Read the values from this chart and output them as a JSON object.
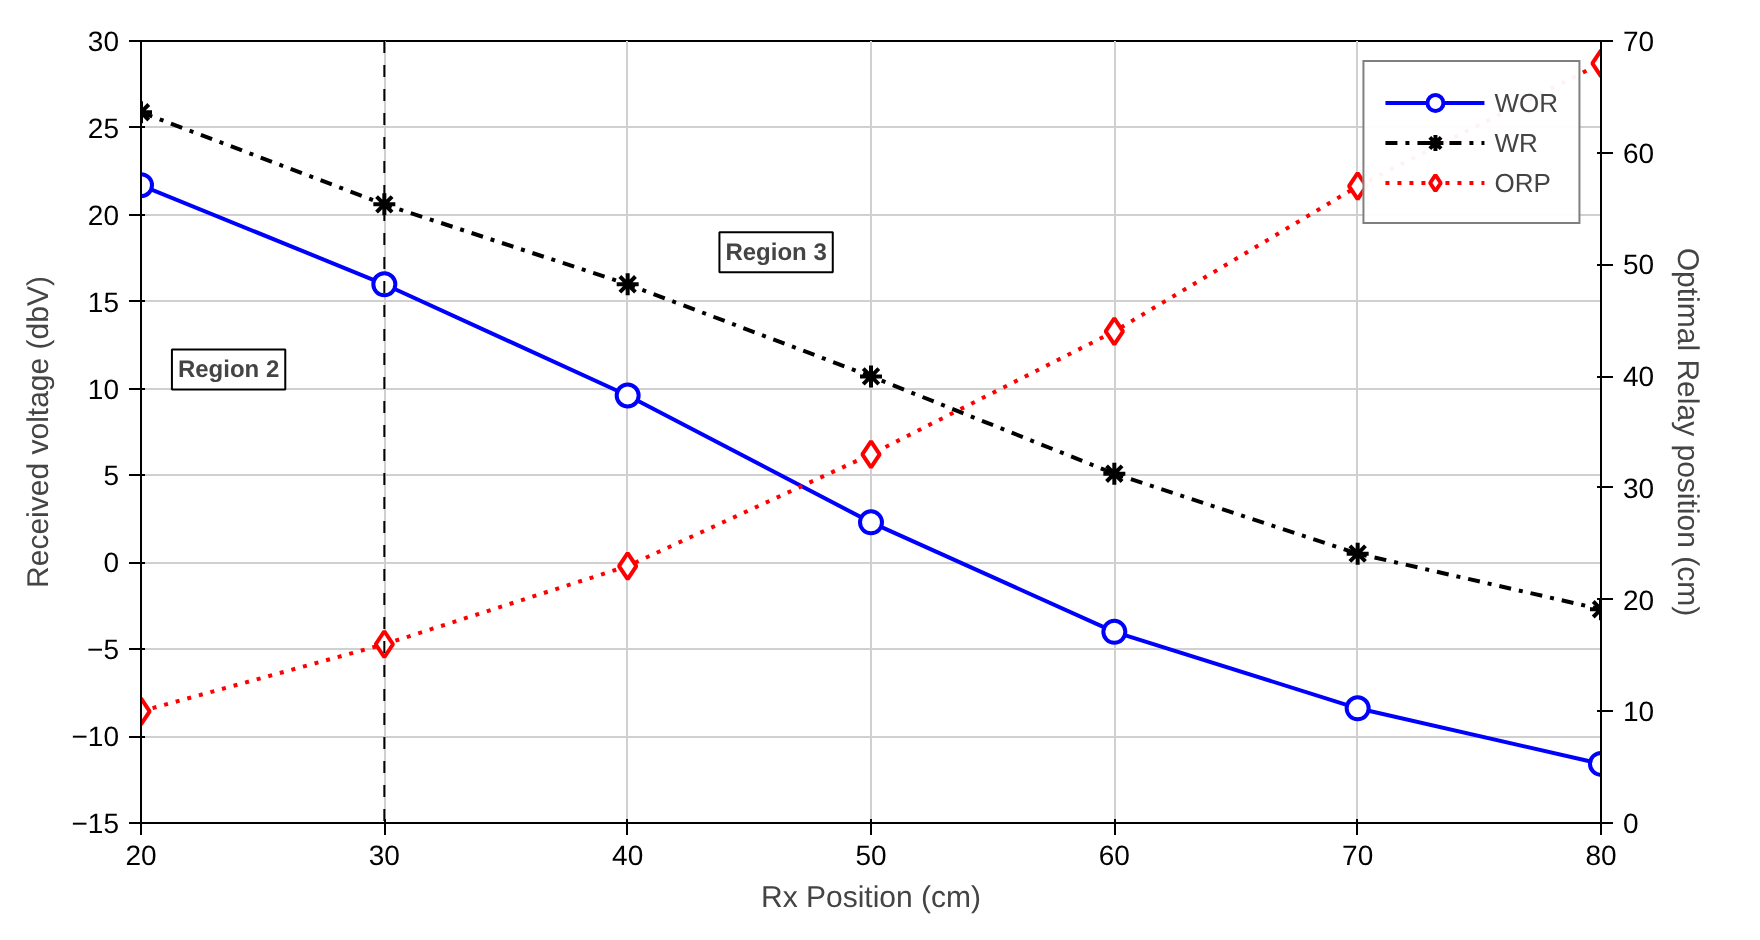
{
  "chart_data": {
    "type": "line",
    "xlabel": "Rx Position (cm)",
    "ylabel": "Received voltage (dbV)",
    "y2label": "Optimal Relay position (cm)",
    "x": [
      20,
      30,
      40,
      50,
      60,
      70,
      80
    ],
    "xlim": [
      20,
      80
    ],
    "xticks": [
      20,
      30,
      40,
      50,
      60,
      70,
      80
    ],
    "ylim": [
      -15,
      30
    ],
    "yticks": [
      -15,
      -10,
      -5,
      0,
      5,
      10,
      15,
      20,
      25,
      30
    ],
    "y2lim": [
      0,
      70
    ],
    "y2ticks": [
      0,
      10,
      20,
      30,
      40,
      50,
      60,
      70
    ],
    "grid": true,
    "legend": "top right",
    "series": [
      {
        "name": "WOR",
        "color": "#0000ff",
        "marker": "circle",
        "line_style": "solid",
        "values": [
          21.7,
          16.0,
          9.6,
          2.3,
          -4.0,
          -8.4,
          -11.6
        ]
      },
      {
        "name": "WR",
        "color": "#000000",
        "marker": "cross",
        "line_style": "dashed",
        "values": [
          25.9,
          20.6,
          16.0,
          10.7,
          5.1,
          0.5,
          -2.7
        ]
      },
      {
        "name": "ORP",
        "color": "#ff0000",
        "marker": "diamond",
        "line_style": "dotted",
        "axis": "y2",
        "values": [
          10,
          16,
          23,
          33,
          44,
          57,
          68
        ]
      }
    ],
    "ref_lines": [
      {
        "axis": "x",
        "value": 30,
        "color": "#000000",
        "line_style": "dashed"
      }
    ],
    "annotations": [
      "Region 2",
      "Region 3"
    ]
  }
}
